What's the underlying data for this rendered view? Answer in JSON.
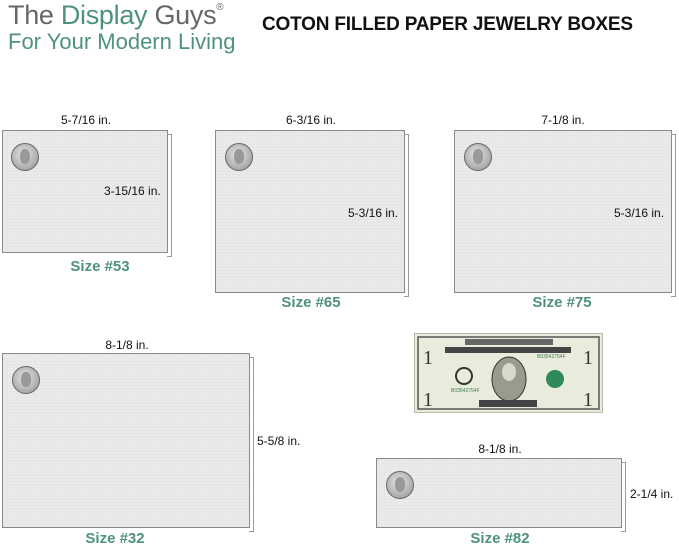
{
  "brand": {
    "name_part1": "The ",
    "name_part2": "Display",
    "name_part3": " Guys",
    "registered": "®",
    "tagline": "For Your Modern Living",
    "accent_color": "#4e9379"
  },
  "title": "COTON FILLED PAPER JEWELRY BOXES",
  "boxes": [
    {
      "size": "Size #53",
      "width": "5-7/16 in.",
      "height": "3-15/16 in."
    },
    {
      "size": "Size #65",
      "width": "6-3/16 in.",
      "height": "5-3/16 in."
    },
    {
      "size": "Size #75",
      "width": "7-1/8 in.",
      "height": "5-3/16 in."
    },
    {
      "size": "Size #32",
      "width": "8-1/8 in.",
      "height": "5-5/8 in."
    },
    {
      "size": "Size #82",
      "width": "8-1/8 in.",
      "height": "2-1/4 in."
    }
  ],
  "reference": {
    "coin": "quarter-coin",
    "bill": "one-dollar-bill",
    "bill_text": "THE UNITED STATES OF AMERICA ONE DOLLAR"
  }
}
